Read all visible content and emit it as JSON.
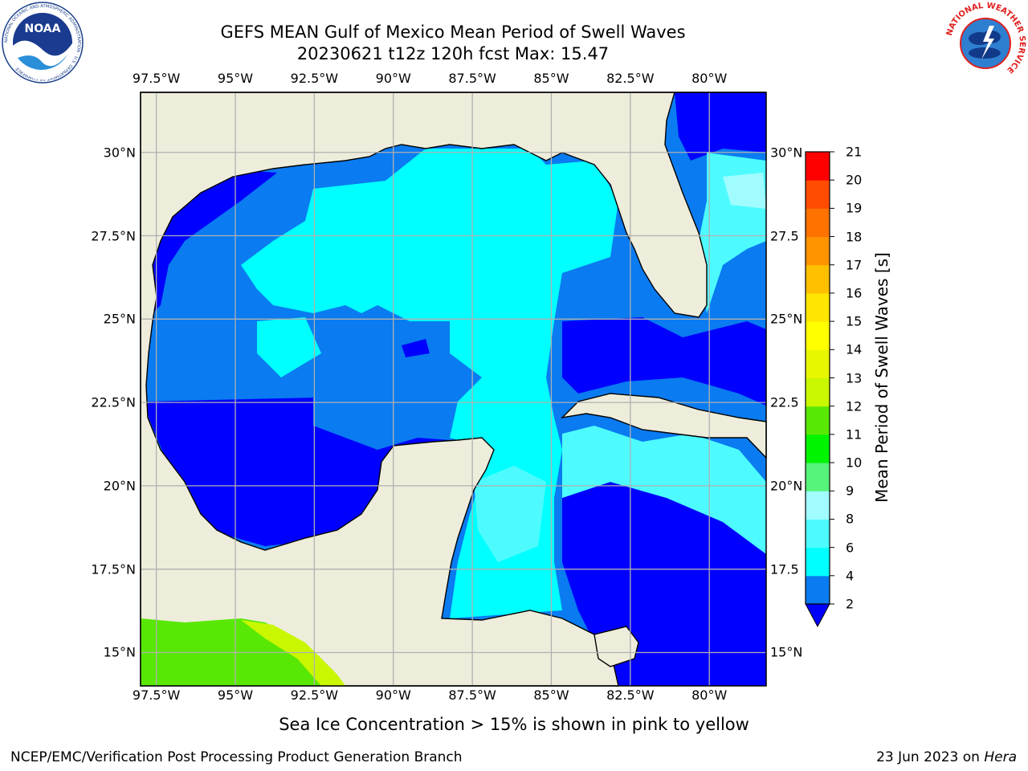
{
  "header": {
    "title": "GEFS MEAN Gulf of Mexico Mean Period of Swell Waves",
    "subtitle": "20230621 t12z 120h fcst   Max: 15.47"
  },
  "logos": {
    "noaa": {
      "text": "NOAA",
      "ring_text": "NATIONAL OCEANIC AND ATMOSPHERIC ADMINISTRATION · U.S. DEPARTMENT OF COMMERCE"
    },
    "nws": {
      "ring_text": "NATIONAL WEATHER SERVICE"
    }
  },
  "map": {
    "lon_labels": [
      "97.5°W",
      "95°W",
      "92.5°W",
      "90°W",
      "87.5°W",
      "85°W",
      "82.5°W",
      "80°W"
    ],
    "lat_labels_left": [
      "30°N",
      "27.5°N",
      "25°N",
      "22.5°N",
      "20°N",
      "17.5°N",
      "15°N"
    ],
    "lat_labels_right": [
      "30°N",
      "27.5",
      "25°N",
      "22.5",
      "20°N",
      "17.5",
      "15°N"
    ],
    "lon_values": [
      -97.5,
      -95,
      -92.5,
      -90,
      -87.5,
      -85,
      -82.5,
      -80
    ],
    "lat_values": [
      30,
      27.5,
      25,
      22.5,
      20,
      17.5,
      15
    ],
    "extent": {
      "lon_min": -98,
      "lon_max": -78.2,
      "lat_min": 14.0,
      "lat_max": 31.8
    },
    "colors": {
      "land": "#eeeddc",
      "grid": "#b0b0b0",
      "coast": "#000000"
    }
  },
  "colorbar": {
    "label": "Mean Period of Swell Waves [s]",
    "ticks": [
      "2",
      "4",
      "6",
      "8",
      "9",
      "10",
      "11",
      "12",
      "13",
      "14",
      "15",
      "16",
      "17",
      "18",
      "19",
      "20",
      "21"
    ],
    "bins": [
      {
        "color": "#0a7bf0"
      },
      {
        "color": "#00ffff"
      },
      {
        "color": "#4dfbff"
      },
      {
        "color": "#a0fcff"
      },
      {
        "color": "#56f47a"
      },
      {
        "color": "#00f400"
      },
      {
        "color": "#59e805"
      },
      {
        "color": "#c8f700"
      },
      {
        "color": "#e6f700"
      },
      {
        "color": "#ffff00"
      },
      {
        "color": "#ffe600"
      },
      {
        "color": "#ffc000"
      },
      {
        "color": "#ff9400"
      },
      {
        "color": "#ff7200"
      },
      {
        "color": "#ff4c00"
      },
      {
        "color": "#ff0000"
      }
    ],
    "extend_color": "#0000ff"
  },
  "footer": {
    "caption": "Sea Ice Concentration > 15% is shown in pink to yellow",
    "credit": "NCEP/EMC/Verification Post Processing Product Generation Branch",
    "date": "23 Jun 2023 on ",
    "host": "Hera"
  }
}
